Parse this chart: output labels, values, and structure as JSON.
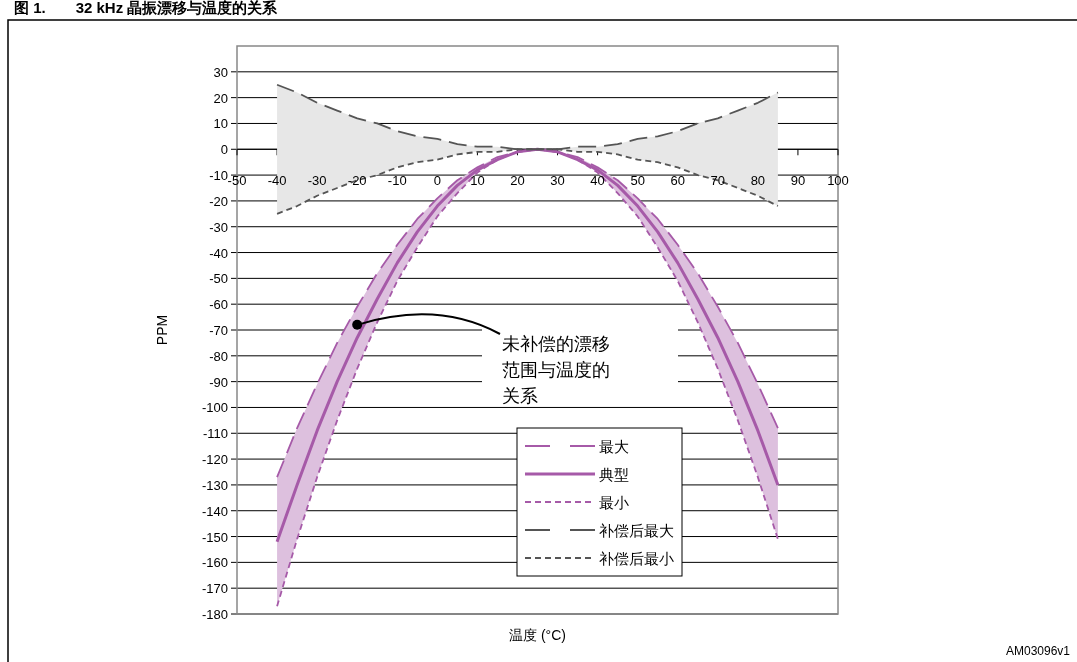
{
  "chart_data": {
    "type": "line",
    "title": "图 1.　　32 kHz 晶振漂移与温度的关系",
    "xlabel": "温度 (°C)",
    "ylabel": "PPM",
    "x": [
      -40,
      -35,
      -30,
      -25,
      -20,
      -15,
      -10,
      -5,
      0,
      5,
      10,
      15,
      20,
      25,
      30,
      35,
      40,
      45,
      50,
      55,
      60,
      65,
      70,
      75,
      80,
      85
    ],
    "xlim": [
      -50,
      100
    ],
    "xticks": [
      -50,
      -40,
      -30,
      -20,
      -10,
      0,
      10,
      20,
      30,
      40,
      50,
      60,
      70,
      80,
      90,
      100
    ],
    "ylim": [
      -180,
      40
    ],
    "yticks": [
      -180,
      -170,
      -160,
      -150,
      -140,
      -130,
      -120,
      -110,
      -100,
      -90,
      -80,
      -70,
      -60,
      -50,
      -40,
      -30,
      -20,
      -10,
      0,
      10,
      20,
      30
    ],
    "grid": "y",
    "legend": "bottom",
    "series": [
      {
        "name": "最大",
        "color": "#a65aa8",
        "line_style": "dashed",
        "values": [
          -127,
          -108,
          -91,
          -75,
          -61,
          -48,
          -37,
          -27,
          -19,
          -12,
          -7,
          -3,
          -1,
          0,
          -1,
          -3,
          -7,
          -12,
          -19,
          -27,
          -37,
          -48,
          -61,
          -75,
          -91,
          -108
        ]
      },
      {
        "name": "典型",
        "color": "#a65aa8",
        "line_style": "solid",
        "values": [
          -152,
          -130,
          -109,
          -90,
          -73,
          -58,
          -44,
          -32,
          -22,
          -14,
          -8,
          -4,
          -1,
          0,
          -1,
          -4,
          -8,
          -14,
          -22,
          -32,
          -44,
          -58,
          -73,
          -90,
          -109,
          -130
        ],
        "lower": [
          -177,
          -151,
          -127,
          -105,
          -85,
          -67,
          -51,
          -38,
          -26,
          -17,
          -9,
          -4,
          -1,
          0,
          -1,
          -4,
          -9,
          -17,
          -26,
          -38,
          -51,
          -67,
          -85,
          -105,
          -127,
          -151
        ],
        "upper": [
          -127,
          -108,
          -91,
          -75,
          -61,
          -48,
          -37,
          -27,
          -19,
          -12,
          -7,
          -3,
          -1,
          0,
          -1,
          -3,
          -7,
          -12,
          -19,
          -27,
          -37,
          -48,
          -61,
          -75,
          -91,
          -108
        ]
      },
      {
        "name": "最小",
        "color": "#a65aa8",
        "line_style": "dotted",
        "values": [
          -177,
          -151,
          -127,
          -105,
          -85,
          -67,
          -51,
          -38,
          -26,
          -17,
          -9,
          -4,
          -1,
          0,
          -1,
          -4,
          -9,
          -17,
          -26,
          -38,
          -51,
          -67,
          -85,
          -105,
          -127,
          -151
        ]
      },
      {
        "name": "补偿后最大",
        "color": "#555555",
        "line_style": "dashed",
        "values": [
          25,
          22,
          18,
          15,
          12,
          10,
          7,
          5,
          4,
          2,
          1,
          1,
          0,
          0,
          0,
          1,
          1,
          2,
          4,
          5,
          7,
          10,
          12,
          15,
          18,
          22
        ],
        "lower": [
          -25,
          -22,
          -18,
          -15,
          -12,
          -10,
          -7,
          -5,
          -4,
          -2,
          -1,
          -1,
          0,
          0,
          0,
          -1,
          -1,
          -2,
          -4,
          -5,
          -7,
          -10,
          -12,
          -15,
          -18,
          -22
        ],
        "upper": [
          25,
          22,
          18,
          15,
          12,
          10,
          7,
          5,
          4,
          2,
          1,
          1,
          0,
          0,
          0,
          1,
          1,
          2,
          4,
          5,
          7,
          10,
          12,
          15,
          18,
          22
        ]
      },
      {
        "name": "补偿后最小",
        "color": "#555555",
        "line_style": "dotted",
        "values": [
          -25,
          -22,
          -18,
          -15,
          -12,
          -10,
          -7,
          -5,
          -4,
          -2,
          -1,
          -1,
          0,
          0,
          0,
          -1,
          -1,
          -2,
          -4,
          -5,
          -7,
          -10,
          -12,
          -15,
          -18,
          -22
        ]
      }
    ],
    "annotations": [
      {
        "text": "未补偿的漂移范围与温度的关系",
        "x": -20,
        "y": -68
      },
      "AM03096v1"
    ]
  }
}
